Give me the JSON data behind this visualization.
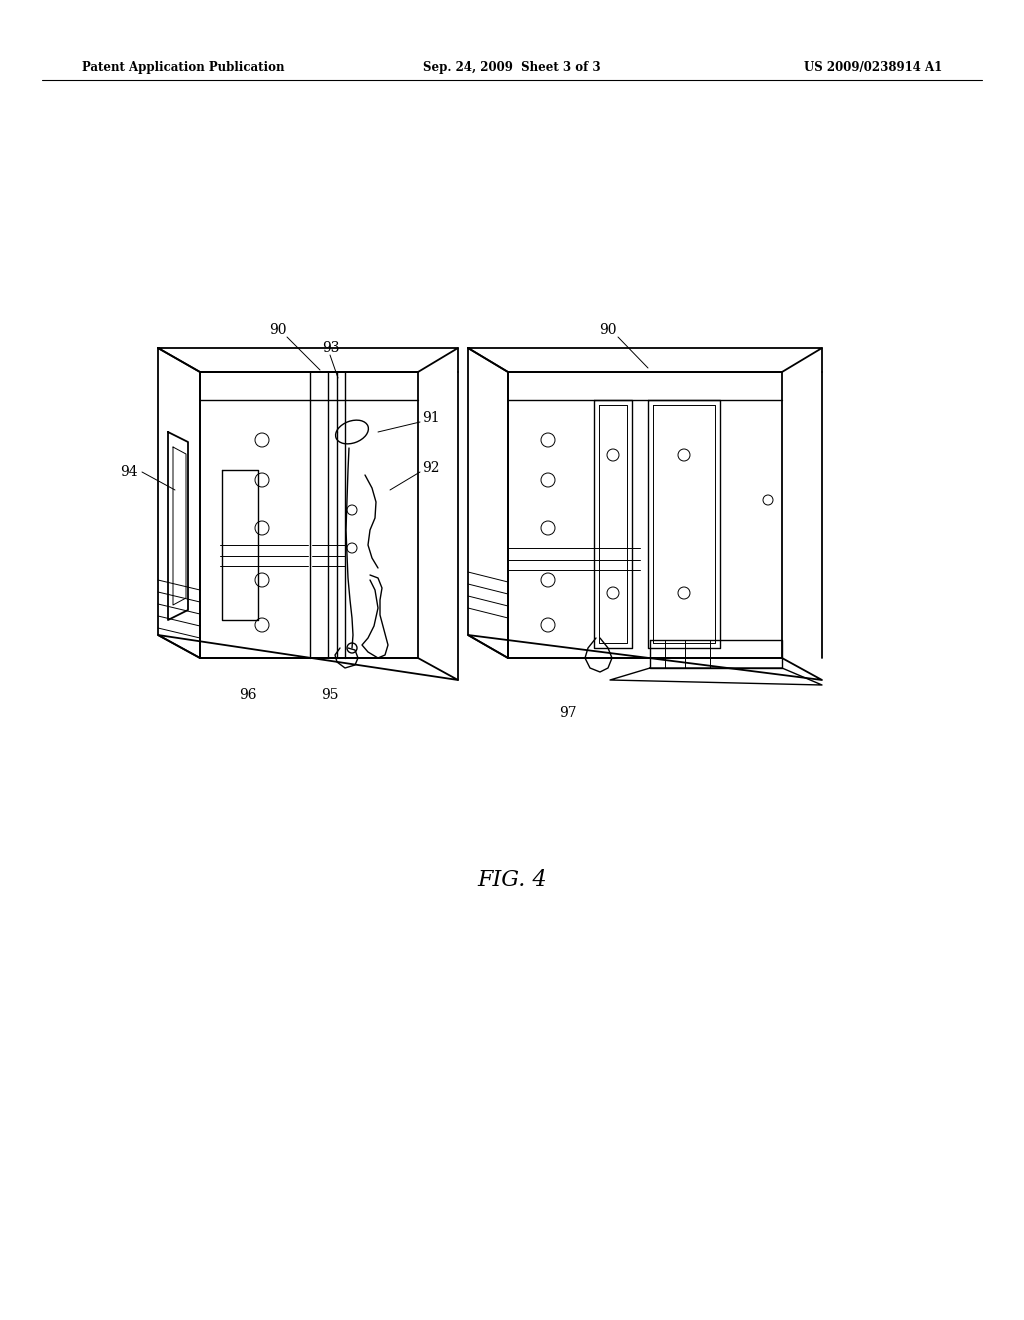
{
  "background_color": "#ffffff",
  "header_left": "Patent Application Publication",
  "header_mid": "Sep. 24, 2009  Sheet 3 of 3",
  "header_right": "US 2009/0238914 A1",
  "fig_label": "FIG. 4",
  "line_color": "#000000",
  "lw": 1.3,
  "thin_lw": 0.7,
  "med_lw": 1.0
}
